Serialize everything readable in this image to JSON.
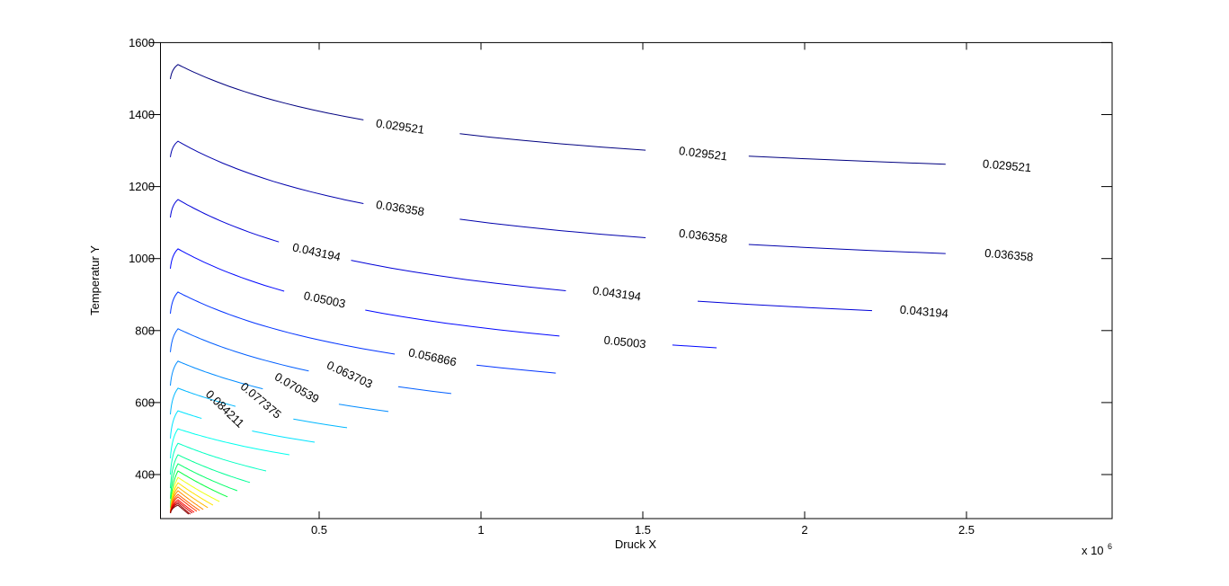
{
  "figure": {
    "background": "#ffffff",
    "axis_color": "#000000",
    "axes": {
      "xlabel": "Druck X",
      "ylabel": "Temperatur Y",
      "exponent_base": "x 10",
      "exponent_power": "6",
      "x_tick_labels": [
        "0.5",
        "1",
        "1.5",
        "2",
        "2.5"
      ],
      "x_tick_values": [
        0.5,
        1,
        1.5,
        2,
        2.5
      ],
      "y_tick_labels": [
        "400",
        "600",
        "800",
        "1000",
        "1200",
        "1400",
        "1600"
      ],
      "y_tick_values": [
        400,
        600,
        800,
        1000,
        1200,
        1400,
        1600
      ]
    }
  },
  "chart_data": {
    "type": "contour",
    "title": "",
    "xlabel": "Druck X",
    "ylabel": "Temperatur Y",
    "x_unit_multiplier": 1000000,
    "x_range_e6": [
      0.009,
      2.95
    ],
    "y_range": [
      277,
      1600
    ],
    "grid": false,
    "legend": "none",
    "contour_level_step": 0.0068363,
    "labeled_levels": [
      "0.029521",
      "0.036358",
      "0.043194",
      "0.05003",
      "0.056866",
      "0.063703",
      "0.070539",
      "0.077375",
      "0.084211"
    ],
    "levels": [
      {
        "value": 0.029521,
        "label": "0.029521",
        "color": "#000080",
        "start": [
          0.0403,
          1499
        ],
        "peak": [
          0.0639,
          1539
        ],
        "end": [
          2.95,
          1249
        ],
        "labels": [
          {
            "x": 0.75,
            "t": 1366,
            "rot": 8
          },
          {
            "x": 1.686,
            "t": 1291,
            "rot": 7
          },
          {
            "x": 2.625,
            "t": 1257,
            "rot": 5
          }
        ],
        "gaps": [
          [
            0.6444,
            0.8556
          ],
          [
            1.5806,
            1.7917
          ],
          [
            2.5194,
            2.7306
          ]
        ]
      },
      {
        "value": 0.036358,
        "label": "0.036358",
        "color": "#0000AC",
        "start": [
          0.0403,
          1282
        ],
        "peak": [
          0.0639,
          1326
        ],
        "end": [
          2.95,
          999
        ],
        "labels": [
          {
            "x": 0.75,
            "t": 1139,
            "rot": 9
          },
          {
            "x": 1.686,
            "t": 1062,
            "rot": 7
          },
          {
            "x": 2.631,
            "t": 1009,
            "rot": 5
          }
        ],
        "gaps": [
          [
            0.6444,
            0.8556
          ],
          [
            1.5806,
            1.7917
          ],
          [
            2.525,
            2.736
          ]
        ]
      },
      {
        "value": 0.043194,
        "label": "0.043194",
        "color": "#0000D8",
        "start": [
          0.0403,
          1114
        ],
        "peak": [
          0.0639,
          1164
        ],
        "end": [
          2.661,
          840
        ],
        "labels": [
          {
            "x": 0.4917,
            "t": 1017,
            "rot": 12
          },
          {
            "x": 1.4194,
            "t": 902,
            "rot": 8
          },
          {
            "x": 2.369,
            "t": 852,
            "rot": 5
          }
        ],
        "gaps": [
          [
            0.3861,
            0.5972
          ],
          [
            1.3139,
            1.525
          ],
          [
            2.2639,
            2.475
          ]
        ]
      },
      {
        "value": 0.05003,
        "label": "0.05003",
        "color": "#0006FF",
        "start": [
          0.0403,
          972
        ],
        "peak": [
          0.0639,
          1027
        ],
        "end": [
          1.728,
          752
        ],
        "labels": [
          {
            "x": 0.5167,
            "t": 885,
            "rot": 12
          },
          {
            "x": 1.4444,
            "t": 767,
            "rot": 6
          }
        ],
        "gaps": [
          [
            0.4222,
            0.6333
          ],
          [
            1.3389,
            1.55
          ]
        ]
      },
      {
        "value": 0.056866,
        "label": "0.056866",
        "color": "#0032FF",
        "start": [
          0.0403,
          847
        ],
        "peak": [
          0.0639,
          907
        ],
        "end": [
          1.231,
          682
        ],
        "labels": [
          {
            "x": 0.85,
            "t": 725,
            "rot": 12
          }
        ],
        "gaps": [
          [
            0.7444,
            0.9556
          ]
        ]
      },
      {
        "value": 0.063703,
        "label": "0.063703",
        "color": "#005EFF",
        "start": [
          0.0403,
          740
        ],
        "peak": [
          0.0639,
          805
        ],
        "end": [
          0.908,
          625
        ],
        "labels": [
          {
            "x": 0.594,
            "t": 677,
            "rot": 25
          }
        ],
        "gaps": [
          [
            0.49,
            0.7
          ]
        ]
      },
      {
        "value": 0.070539,
        "label": "0.070539",
        "color": "#008BFF",
        "start": [
          0.0403,
          647
        ],
        "peak": [
          0.0639,
          715
        ],
        "end": [
          0.714,
          575
        ],
        "labels": [
          {
            "x": 0.4306,
            "t": 640,
            "rot": 30
          }
        ],
        "gaps": [
          [
            0.33,
            0.53
          ]
        ]
      },
      {
        "value": 0.077375,
        "label": "0.077375",
        "color": "#00B7FF",
        "start": [
          0.0403,
          567
        ],
        "peak": [
          0.0639,
          640
        ],
        "end": [
          0.586,
          530
        ],
        "labels": [
          {
            "x": 0.3194,
            "t": 605,
            "rot": 40
          }
        ],
        "gaps": [
          [
            0.245,
            0.4
          ]
        ]
      },
      {
        "value": 0.084211,
        "label": "0.084211",
        "color": "#00E3FF",
        "start": [
          0.0403,
          500
        ],
        "peak": [
          0.0639,
          577
        ],
        "end": [
          0.486,
          490
        ],
        "labels": [
          {
            "x": 0.208,
            "t": 582,
            "rot": 44
          }
        ],
        "gaps": [
          [
            0.14,
            0.285
          ]
        ]
      },
      {
        "value": 0.091047,
        "label": "",
        "color": "#00FFEE",
        "start": [
          0.0403,
          445
        ],
        "peak": [
          0.0639,
          527
        ],
        "end": [
          0.408,
          455
        ],
        "labels": [],
        "gaps": []
      },
      {
        "value": 0.097884,
        "label": "",
        "color": "#00FFC2",
        "start": [
          0.0403,
          400
        ],
        "peak": [
          0.0639,
          487
        ],
        "end": [
          0.336,
          410
        ],
        "labels": [],
        "gaps": []
      },
      {
        "value": 0.10472,
        "label": "",
        "color": "#00FF96",
        "start": [
          0.0403,
          362
        ],
        "peak": [
          0.0639,
          455
        ],
        "end": [
          0.286,
          378
        ],
        "labels": [],
        "gaps": []
      },
      {
        "value": 0.111556,
        "label": "",
        "color": "#00FF69",
        "start": [
          0.0403,
          333
        ],
        "peak": [
          0.0639,
          430
        ],
        "end": [
          0.247,
          355
        ],
        "labels": [],
        "gaps": []
      },
      {
        "value": 0.118393,
        "label": "",
        "color": "#00FF3D",
        "start": [
          0.0403,
          308
        ],
        "peak": [
          0.0639,
          410
        ],
        "end": [
          0.217,
          338
        ],
        "labels": [],
        "gaps": []
      },
      {
        "value": 0.125229,
        "label": "",
        "color": "#EEFF11",
        "start": [
          0.0403,
          293
        ],
        "peak": [
          0.0639,
          392
        ],
        "end": [
          0.192,
          325
        ],
        "labels": [],
        "gaps": []
      },
      {
        "value": 0.132065,
        "label": "",
        "color": "#FFE300",
        "start": [
          0.0403,
          293
        ],
        "peak": [
          0.0639,
          377
        ],
        "end": [
          0.172,
          315
        ],
        "labels": [],
        "gaps": []
      },
      {
        "value": 0.138902,
        "label": "",
        "color": "#FFB700",
        "start": [
          0.0403,
          293
        ],
        "peak": [
          0.0639,
          365
        ],
        "end": [
          0.156,
          308
        ],
        "labels": [],
        "gaps": []
      },
      {
        "value": 0.145738,
        "label": "",
        "color": "#FF8B00",
        "start": [
          0.0403,
          293
        ],
        "peak": [
          0.0639,
          355
        ],
        "end": [
          0.142,
          303
        ],
        "labels": [],
        "gaps": []
      },
      {
        "value": 0.152574,
        "label": "",
        "color": "#FF5E00",
        "start": [
          0.0403,
          293
        ],
        "peak": [
          0.0639,
          345
        ],
        "end": [
          0.131,
          300
        ],
        "labels": [],
        "gaps": []
      },
      {
        "value": 0.159411,
        "label": "",
        "color": "#FF3200",
        "start": [
          0.0403,
          293
        ],
        "peak": [
          0.0639,
          338
        ],
        "end": [
          0.122,
          298
        ],
        "labels": [],
        "gaps": []
      },
      {
        "value": 0.166247,
        "label": "",
        "color": "#FF0600",
        "start": [
          0.0403,
          293
        ],
        "peak": [
          0.0639,
          330
        ],
        "end": [
          0.114,
          295
        ],
        "labels": [],
        "gaps": []
      },
      {
        "value": 0.173083,
        "label": "",
        "color": "#D80000",
        "start": [
          0.0403,
          293
        ],
        "peak": [
          0.0639,
          325
        ],
        "end": [
          0.108,
          293
        ],
        "labels": [],
        "gaps": []
      },
      {
        "value": 0.17992,
        "label": "",
        "color": "#AC0000",
        "start": [
          0.0403,
          293
        ],
        "peak": [
          0.0639,
          320
        ],
        "end": [
          0.102,
          290
        ],
        "labels": [],
        "gaps": []
      },
      {
        "value": 0.186756,
        "label": "",
        "color": "#800000",
        "start": [
          0.0403,
          293
        ],
        "peak": [
          0.0639,
          315
        ],
        "end": [
          0.097,
          290
        ],
        "labels": [],
        "gaps": []
      }
    ]
  }
}
